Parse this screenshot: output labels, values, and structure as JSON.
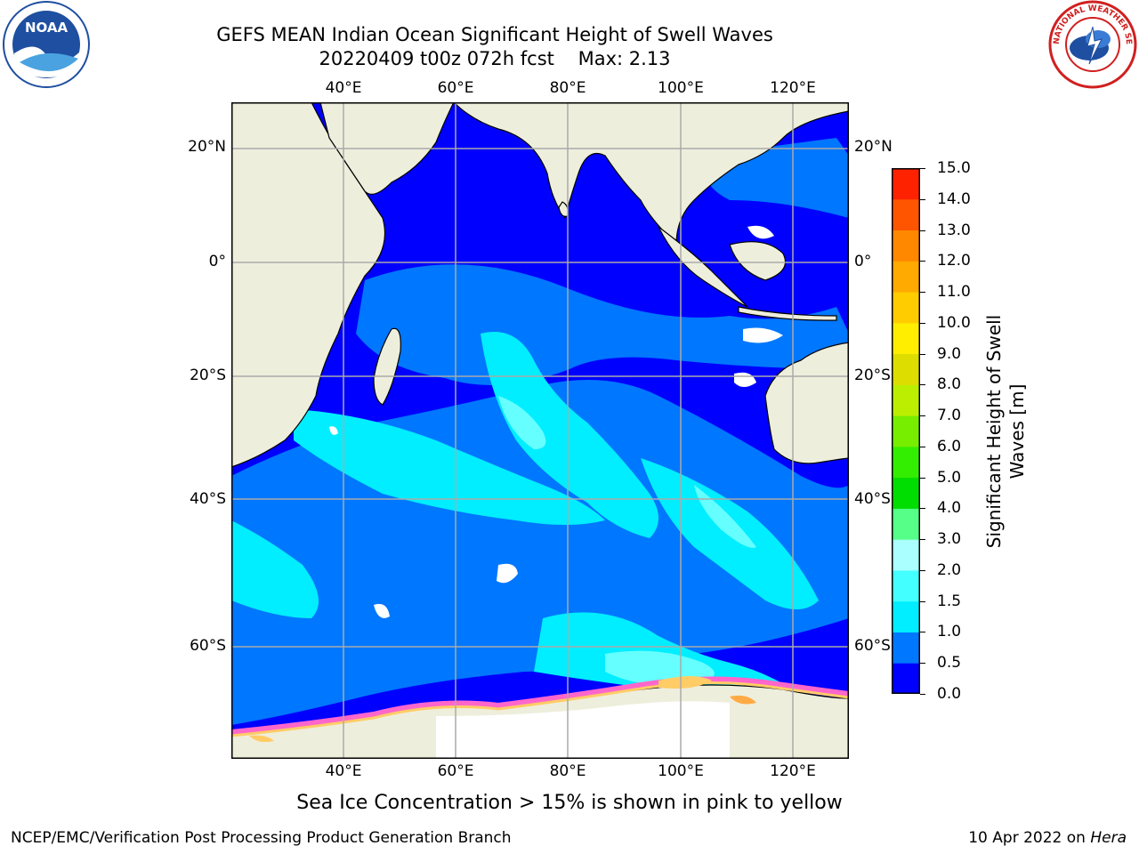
{
  "title": {
    "line1": "GEFS MEAN Indian Ocean Significant Height of Swell Waves",
    "line2": "20220409 t00z 072h fcst    Max: 2.13"
  },
  "longitude_labels": [
    "40°E",
    "60°E",
    "80°E",
    "100°E",
    "120°E"
  ],
  "latitude_labels": [
    "20°N",
    "0°",
    "20°S",
    "40°S",
    "60°S"
  ],
  "colorbar": {
    "title_line1": "Significant Height of Swell",
    "title_line2": "Waves [m]",
    "ticks": [
      "0.0",
      "0.5",
      "1.0",
      "1.5",
      "2.0",
      "3.0",
      "4.0",
      "5.0",
      "6.0",
      "7.0",
      "8.0",
      "9.0",
      "10.0",
      "11.0",
      "12.0",
      "13.0",
      "14.0",
      "15.0"
    ],
    "colors": [
      "#0000ff",
      "#0077ff",
      "#00eeff",
      "#44ffff",
      "#aaffff",
      "#55ff88",
      "#00dd00",
      "#33ee00",
      "#77ee00",
      "#bbee00",
      "#dddd00",
      "#ffee00",
      "#ffcc00",
      "#ffaa00",
      "#ff8800",
      "#ff5500",
      "#ff2200",
      "#ff0000"
    ]
  },
  "colors": {
    "land": "#eeeedd",
    "ocean_low": "#0000ff",
    "ocean_mid": "#0077ff",
    "ocean_high": "#00eeff",
    "ocean_peak": "#66ffff",
    "sea_ice": "#ff66cc",
    "grid": "#aaaaaa"
  },
  "note": "Sea Ice Concentration > 15% is shown in pink to yellow",
  "credit": "NCEP/EMC/Verification Post Processing Product Generation Branch",
  "date": "10 Apr 2022 on ",
  "date_machine": "Hera",
  "logos": {
    "noaa_text": "NOAA",
    "nws_text": "NATIONAL WEATHER SERVICE"
  }
}
